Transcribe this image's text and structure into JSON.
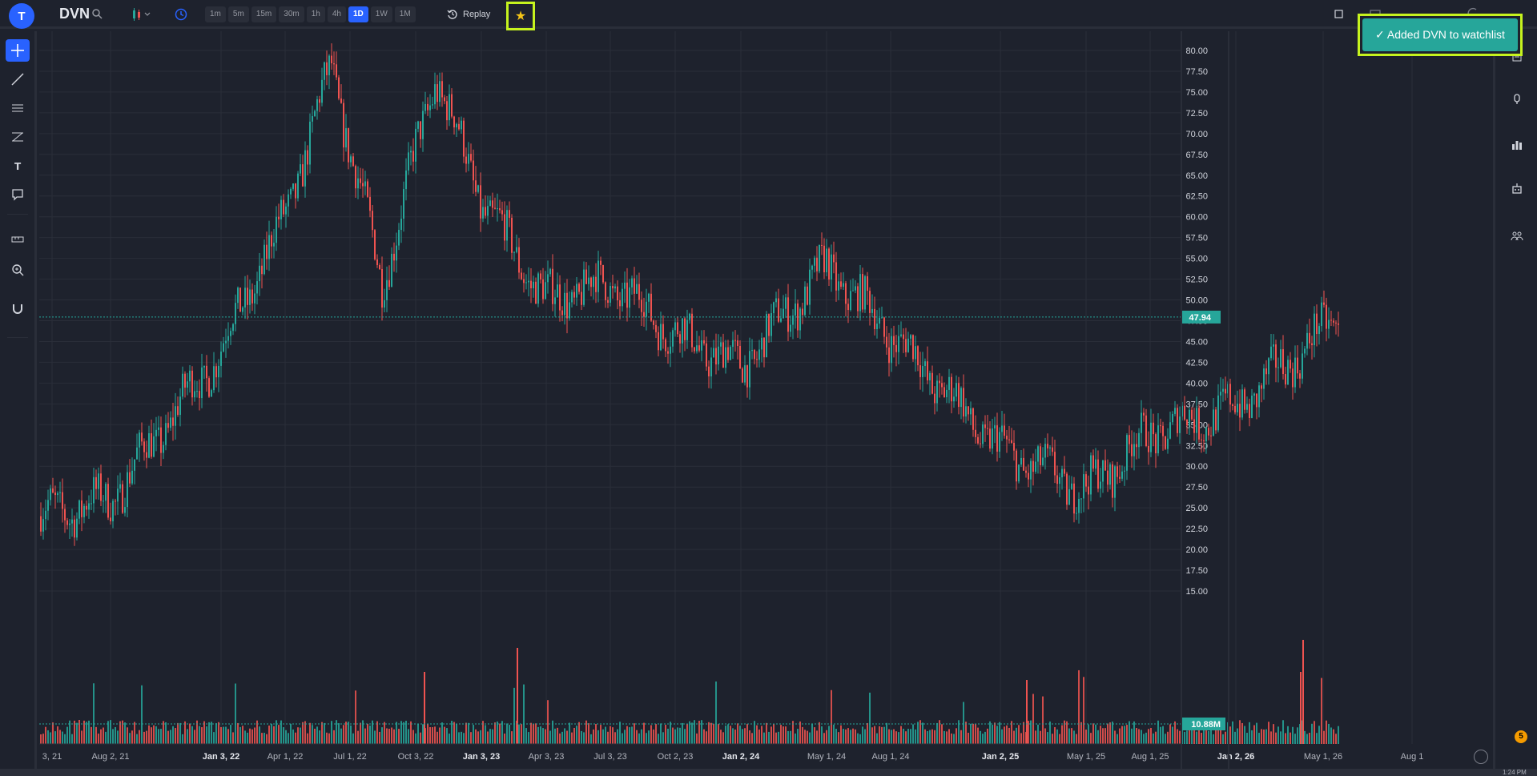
{
  "header": {
    "avatar_letter": "T",
    "symbol": "DVN",
    "timeframes": [
      "1m",
      "5m",
      "15m",
      "30m",
      "1h",
      "4h",
      "1D",
      "1W",
      "1M"
    ],
    "active_timeframe": "1D",
    "replay_label": "Replay",
    "right_partial_label": "Indicators"
  },
  "toast": {
    "message": "✓ Added DVN to watchlist"
  },
  "price_axis": {
    "labels": [
      "80.00",
      "77.50",
      "75.00",
      "72.50",
      "70.00",
      "67.50",
      "65.00",
      "62.50",
      "60.00",
      "57.50",
      "55.00",
      "52.50",
      "50.00",
      "47.50",
      "45.00",
      "42.50",
      "40.00",
      "37.50",
      "35.00",
      "32.50",
      "30.00",
      "27.50",
      "25.00",
      "22.50",
      "20.00",
      "17.50",
      "15.00"
    ],
    "current_price": "47.94",
    "current_volume": "10.88M"
  },
  "time_axis": {
    "labels": [
      "3, 21",
      "Aug 2, 21",
      "Jan 3, 22",
      "Apr 1, 22",
      "Jul 1, 22",
      "Oct 3, 22",
      "Jan 3, 23",
      "Apr 3, 23",
      "Jul 3, 23",
      "Oct 2, 23",
      "Jan 2, 24",
      "May 1, 24",
      "Aug 1, 24",
      "Jan 2, 25",
      "May 1, 25",
      "Aug 1, 25",
      "Jan 2, 26",
      "May 1, 26",
      "Aug 1"
    ],
    "bold_labels": [
      "Jan 3, 22",
      "Jan 3, 23",
      "Jan 2, 24",
      "Jan 2, 25",
      "Jan 2, 26"
    ]
  },
  "chart_data": {
    "type": "candlestick",
    "symbol": "DVN",
    "interval": "1D",
    "ylim": [
      15,
      80
    ],
    "price_path": [
      {
        "x": "3, 21",
        "y": 24
      },
      {
        "x": "Aug 2, 21",
        "y": 26
      },
      {
        "x": "Jan 3, 22",
        "y": 44
      },
      {
        "x": "Apr 1, 22",
        "y": 60
      },
      {
        "x": "Jul 1, 22",
        "y": 78
      },
      {
        "x": "Jul 1, 22",
        "y": 52
      },
      {
        "x": "Oct 3, 22",
        "y": 77
      },
      {
        "x": "Jan 3, 23",
        "y": 62
      },
      {
        "x": "Apr 3, 23",
        "y": 50
      },
      {
        "x": "Jul 3, 23",
        "y": 52
      },
      {
        "x": "Oct 2, 23",
        "y": 46
      },
      {
        "x": "Jan 2, 24",
        "y": 42
      },
      {
        "x": "May 1, 24",
        "y": 54
      },
      {
        "x": "Aug 1, 24",
        "y": 46
      },
      {
        "x": "Jan 2, 25",
        "y": 32
      },
      {
        "x": "May 1, 25",
        "y": 27
      },
      {
        "x": "Aug 1, 25",
        "y": 34
      },
      {
        "x": "Jan 2, 26",
        "y": 37
      },
      {
        "x": "May 1, 26",
        "y": 48
      }
    ],
    "last_price": 47.94,
    "last_volume": "10.88M",
    "colors": {
      "up": "#26a69a",
      "down": "#ef5350",
      "background": "#1e222d",
      "grid": "#2a2e39"
    }
  },
  "left_tools": [
    "crosshair-icon",
    "trendline-icon",
    "horizontal-lines-icon",
    "fib-icon",
    "text-icon",
    "comment-icon",
    "ruler-icon",
    "zoom-icon",
    "magnet-icon"
  ],
  "right_tools": [
    "list-icon",
    "alert-icon",
    "bar-chart-icon",
    "robot-icon",
    "people-icon"
  ],
  "footer": {
    "notification_count": "5",
    "clock": "1:24 PM"
  }
}
